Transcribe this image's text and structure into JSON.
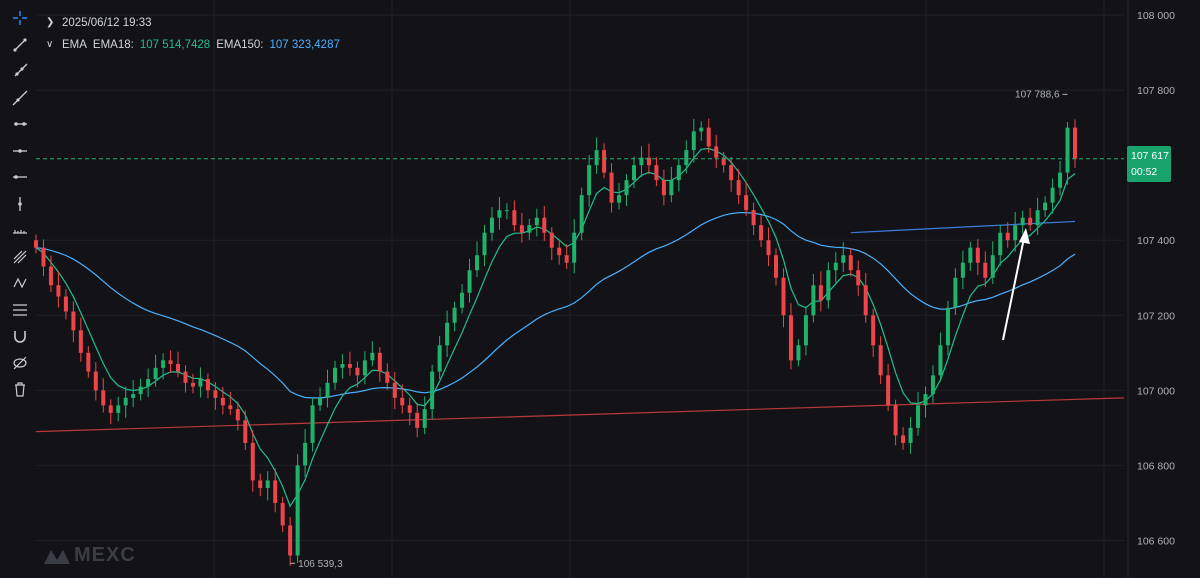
{
  "header": {
    "timestamp": "2025/06/12 19:33",
    "indicator_name": "EMA",
    "ema18_label": "EMA18:",
    "ema18_value": "107 514,7428",
    "ema150_label": "EMA150:",
    "ema150_value": "107 323,4287"
  },
  "price_tag": {
    "price": "107 617",
    "countdown": "00:52"
  },
  "watermark": "MEXC",
  "toolbar": {
    "icons": [
      "crosshair-icon",
      "trend-line-icon",
      "ray-icon",
      "extended-line-icon",
      "horizontal-ray-icon",
      "horizontal-line-icon",
      "price-line-icon",
      "vertical-line-icon",
      "measure-icon",
      "pitchfork-icon",
      "pattern-icon",
      "fib-icon",
      "magnet-icon",
      "hide-icon",
      "trash-icon"
    ]
  },
  "colors": {
    "background": "#131317",
    "up": "#20b26c",
    "down": "#ef454a",
    "ema18": "#1fbf8f",
    "ema150": "#48b0ff",
    "red_line": "#b83a3f",
    "blue_trend": "#3b7ddd",
    "grid": "#1e2026"
  },
  "chart_data": {
    "type": "candlestick",
    "y_axis_ticks": [
      108000,
      107800,
      107400,
      107200,
      107000,
      106800,
      106600
    ],
    "y_axis_tick_labels": [
      "108 000",
      "107 800",
      "107 400",
      "107 200",
      "107 000",
      "106 800",
      "106 600"
    ],
    "ylim": [
      106500,
      108040
    ],
    "grid": true,
    "current_price": 107617,
    "high_annotation": {
      "value": 107788.6,
      "label": "107 788,6"
    },
    "low_annotation": {
      "value": 106539.3,
      "label": "106 539,3"
    },
    "candle_count": 140,
    "ema18_last": 107514.7428,
    "ema150_last": 107323.4287,
    "ohlc_close": [
      107380,
      107330,
      107280,
      107250,
      107210,
      107160,
      107100,
      107050,
      107000,
      106960,
      106940,
      106960,
      106980,
      106990,
      107010,
      107030,
      107060,
      107080,
      107070,
      107050,
      107020,
      107010,
      107030,
      107000,
      106980,
      106960,
      106950,
      106920,
      106860,
      106760,
      106740,
      106760,
      106700,
      106640,
      106560,
      106800,
      106860,
      106960,
      106980,
      107020,
      107060,
      107070,
      107060,
      107040,
      107080,
      107100,
      107050,
      107020,
      106980,
      106960,
      106940,
      106900,
      106950,
      107050,
      107120,
      107180,
      107220,
      107260,
      107320,
      107360,
      107420,
      107460,
      107480,
      107480,
      107440,
      107420,
      107440,
      107460,
      107420,
      107380,
      107360,
      107340,
      107420,
      107520,
      107600,
      107640,
      107580,
      107500,
      107520,
      107560,
      107600,
      107620,
      107600,
      107560,
      107520,
      107560,
      107600,
      107640,
      107690,
      107700,
      107650,
      107620,
      107600,
      107560,
      107520,
      107480,
      107440,
      107400,
      107360,
      107300,
      107200,
      107080,
      107120,
      107200,
      107280,
      107240,
      107320,
      107340,
      107360,
      107320,
      107280,
      107200,
      107120,
      107040,
      106960,
      106880,
      106860,
      106900,
      106960,
      106990,
      107040,
      107120,
      107220,
      107300,
      107340,
      107380,
      107340,
      107300,
      107360,
      107420,
      107400,
      107440,
      107460,
      107440,
      107480,
      107500,
      107540,
      107580,
      107700,
      107617
    ],
    "annotation_arrow": "up-arrow near last candles"
  }
}
